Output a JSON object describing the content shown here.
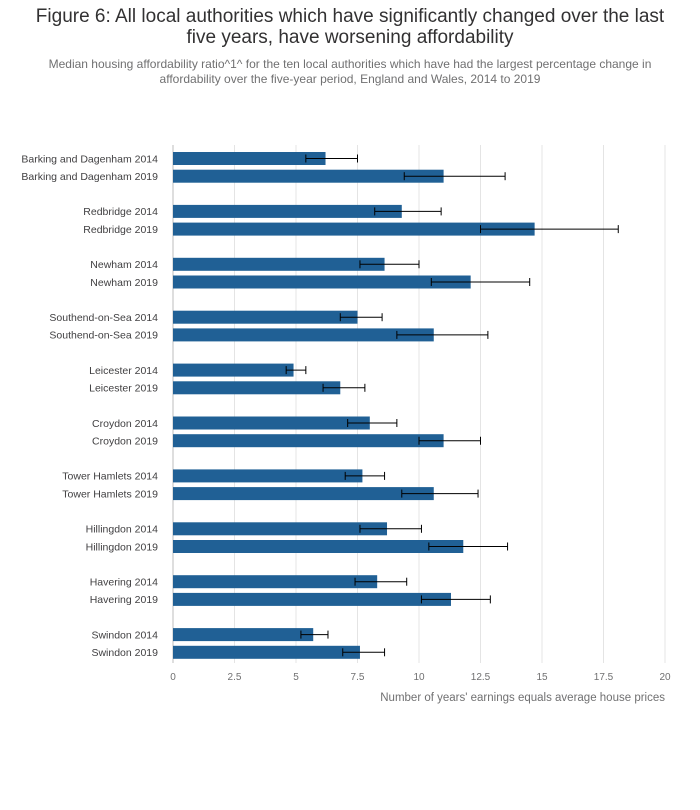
{
  "title": "Figure 6: All local authorities which have significantly changed over the last five years, have worsening affordability",
  "subtitle": "Median housing affordability ratio^1^ for the ten local authorities which have had the largest percentage change in affordability over the five-year period, England and Wales, 2014 to 2019",
  "colors": {
    "bar": "#206095",
    "errorbar": "#000000",
    "grid": "#e4e4e4"
  },
  "chart_data": {
    "type": "bar",
    "orientation": "horizontal",
    "xlabel": "Number of years' earnings equals average house prices",
    "xlim": [
      0,
      20
    ],
    "xticks": [
      0,
      2.5,
      5,
      7.5,
      10,
      12.5,
      15,
      17.5,
      20
    ],
    "xtick_labels": [
      "0",
      "2.5",
      "5",
      "7.5",
      "10",
      "12.5",
      "15",
      "17.5",
      "20"
    ],
    "grid": "vertical",
    "groups": [
      {
        "name": "Barking and Dagenham",
        "bars": [
          {
            "label": "Barking and Dagenham 2014",
            "value": 6.2,
            "lower": 5.4,
            "upper": 7.5
          },
          {
            "label": "Barking and Dagenham 2019",
            "value": 11.0,
            "lower": 9.4,
            "upper": 13.5
          }
        ]
      },
      {
        "name": "Redbridge",
        "bars": [
          {
            "label": "Redbridge 2014",
            "value": 9.3,
            "lower": 8.2,
            "upper": 10.9
          },
          {
            "label": "Redbridge 2019",
            "value": 14.7,
            "lower": 12.5,
            "upper": 18.1
          }
        ]
      },
      {
        "name": "Newham",
        "bars": [
          {
            "label": "Newham 2014",
            "value": 8.6,
            "lower": 7.6,
            "upper": 10.0
          },
          {
            "label": "Newham 2019",
            "value": 12.1,
            "lower": 10.5,
            "upper": 14.5
          }
        ]
      },
      {
        "name": "Southend-on-Sea",
        "bars": [
          {
            "label": "Southend-on-Sea 2014",
            "value": 7.5,
            "lower": 6.8,
            "upper": 8.5
          },
          {
            "label": "Southend-on-Sea 2019",
            "value": 10.6,
            "lower": 9.1,
            "upper": 12.8
          }
        ]
      },
      {
        "name": "Leicester",
        "bars": [
          {
            "label": "Leicester 2014",
            "value": 4.9,
            "lower": 4.6,
            "upper": 5.4
          },
          {
            "label": "Leicester 2019",
            "value": 6.8,
            "lower": 6.1,
            "upper": 7.8
          }
        ]
      },
      {
        "name": "Croydon",
        "bars": [
          {
            "label": "Croydon 2014",
            "value": 8.0,
            "lower": 7.1,
            "upper": 9.1
          },
          {
            "label": "Croydon 2019",
            "value": 11.0,
            "lower": 10.0,
            "upper": 12.5
          }
        ]
      },
      {
        "name": "Tower Hamlets",
        "bars": [
          {
            "label": "Tower Hamlets 2014",
            "value": 7.7,
            "lower": 7.0,
            "upper": 8.6
          },
          {
            "label": "Tower Hamlets 2019",
            "value": 10.6,
            "lower": 9.3,
            "upper": 12.4
          }
        ]
      },
      {
        "name": "Hillingdon",
        "bars": [
          {
            "label": "Hillingdon 2014",
            "value": 8.7,
            "lower": 7.6,
            "upper": 10.1
          },
          {
            "label": "Hillingdon 2019",
            "value": 11.8,
            "lower": 10.4,
            "upper": 13.6
          }
        ]
      },
      {
        "name": "Havering",
        "bars": [
          {
            "label": "Havering 2014",
            "value": 8.3,
            "lower": 7.4,
            "upper": 9.5
          },
          {
            "label": "Havering 2019",
            "value": 11.3,
            "lower": 10.1,
            "upper": 12.9
          }
        ]
      },
      {
        "name": "Swindon",
        "bars": [
          {
            "label": "Swindon 2014",
            "value": 5.7,
            "lower": 5.2,
            "upper": 6.3
          },
          {
            "label": "Swindon 2019",
            "value": 7.6,
            "lower": 6.9,
            "upper": 8.6
          }
        ]
      }
    ]
  }
}
